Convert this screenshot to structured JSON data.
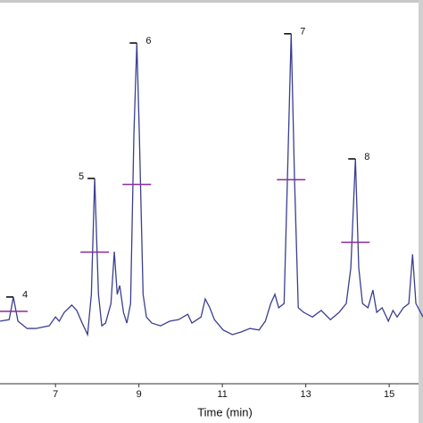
{
  "chart_data": {
    "type": "line",
    "x_label": "Time (min)",
    "xlim": [
      5.67,
      15.81
    ],
    "ylim": [
      0,
      100
    ],
    "xticks": [
      7,
      9,
      11,
      13,
      15
    ],
    "series": [
      {
        "color": "#3b3f8f",
        "x": [
          5.67,
          5.89,
          5.99,
          6.1,
          6.32,
          6.53,
          6.85,
          7.0,
          7.09,
          7.21,
          7.39,
          7.51,
          7.64,
          7.77,
          7.86,
          7.94,
          8.03,
          8.11,
          8.2,
          8.33,
          8.41,
          8.48,
          8.54,
          8.63,
          8.71,
          8.8,
          8.88,
          8.95,
          9.01,
          9.1,
          9.18,
          9.31,
          9.52,
          9.74,
          9.95,
          10.17,
          10.27,
          10.49,
          10.59,
          10.7,
          10.81,
          11.02,
          11.24,
          11.45,
          11.66,
          11.88,
          12.03,
          12.16,
          12.26,
          12.35,
          12.48,
          12.56,
          12.65,
          12.73,
          12.82,
          12.95,
          13.16,
          13.37,
          13.59,
          13.8,
          13.97,
          14.08,
          14.19,
          14.27,
          14.36,
          14.49,
          14.61,
          14.7,
          14.83,
          14.98,
          15.09,
          15.19,
          15.34,
          15.47,
          15.56,
          15.64,
          15.81
        ],
        "values": [
          16.3,
          16.7,
          22.6,
          16.3,
          14.4,
          14.4,
          15.1,
          17.4,
          16.3,
          18.6,
          20.5,
          19.1,
          15.8,
          12.8,
          23.3,
          53.5,
          23.3,
          15.1,
          15.8,
          20.9,
          34.4,
          23.3,
          25.6,
          18.6,
          15.8,
          20.9,
          65.1,
          88.8,
          65.1,
          23.3,
          17.4,
          15.8,
          15.1,
          16.3,
          16.7,
          18.1,
          15.8,
          17.4,
          22.1,
          19.8,
          16.7,
          14.0,
          12.8,
          13.5,
          14.4,
          14.0,
          16.3,
          20.9,
          23.3,
          19.8,
          20.9,
          53.5,
          91.2,
          53.5,
          19.8,
          18.6,
          17.4,
          19.1,
          16.7,
          18.6,
          20.9,
          30.2,
          58.6,
          30.2,
          20.9,
          19.8,
          24.4,
          18.6,
          19.8,
          16.3,
          19.1,
          17.4,
          19.8,
          20.9,
          33.7,
          20.9,
          17.4
        ]
      }
    ],
    "peaks": [
      {
        "label": "4",
        "x": 5.99,
        "y": 22.6
      },
      {
        "label": "5",
        "x": 7.94,
        "y": 53.5
      },
      {
        "label": "6",
        "x": 8.95,
        "y": 88.8
      },
      {
        "label": "7",
        "x": 12.65,
        "y": 91.2
      },
      {
        "label": "8",
        "x": 14.19,
        "y": 58.6
      }
    ]
  }
}
